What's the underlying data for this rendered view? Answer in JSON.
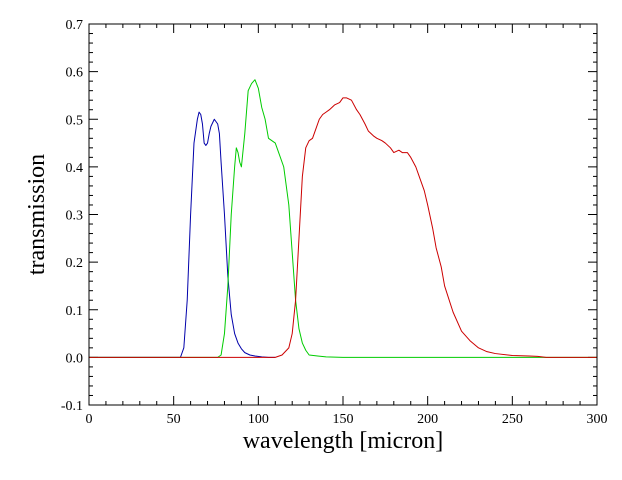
{
  "chart_data": {
    "type": "line",
    "title": "",
    "xlabel": "wavelength [micron]",
    "ylabel": "transmission",
    "xlim": [
      0,
      300
    ],
    "ylim": [
      -0.1,
      0.7
    ],
    "x_ticks": [
      0,
      50,
      100,
      150,
      200,
      250,
      300
    ],
    "x_tick_labels": [
      "0",
      "50",
      "100",
      "150",
      "200",
      "250",
      "300"
    ],
    "y_ticks": [
      -0.1,
      0.0,
      0.1,
      0.2,
      0.3,
      0.4,
      0.5,
      0.6,
      0.7
    ],
    "y_tick_labels": [
      "-0.1",
      "0.0",
      "0.1",
      "0.2",
      "0.3",
      "0.4",
      "0.5",
      "0.6",
      "0.7"
    ],
    "grid": false,
    "legend": "none",
    "series": [
      {
        "color": "#0000aa",
        "x": [
          0,
          54,
          56,
          58,
          60,
          62,
          64,
          65,
          66,
          67,
          68,
          69,
          70,
          71,
          72,
          74,
          76,
          77,
          78,
          80,
          82,
          84,
          86,
          88,
          90,
          92,
          95,
          98,
          102,
          106,
          110
        ],
        "y": [
          0,
          0,
          0.02,
          0.12,
          0.3,
          0.45,
          0.5,
          0.515,
          0.51,
          0.49,
          0.45,
          0.445,
          0.45,
          0.47,
          0.485,
          0.5,
          0.49,
          0.47,
          0.41,
          0.3,
          0.17,
          0.09,
          0.05,
          0.03,
          0.018,
          0.01,
          0.005,
          0.003,
          0.001,
          0,
          0
        ]
      },
      {
        "color": "#00cc00",
        "x": [
          0,
          76,
          78,
          80,
          82,
          84,
          86,
          87,
          88,
          89,
          90,
          92,
          94,
          96,
          98,
          100,
          102,
          104,
          106,
          108,
          110,
          112,
          115,
          118,
          120,
          122,
          124,
          126,
          128,
          130,
          135,
          140,
          150,
          300
        ],
        "y": [
          0,
          0,
          0.005,
          0.05,
          0.15,
          0.3,
          0.4,
          0.44,
          0.43,
          0.41,
          0.4,
          0.47,
          0.56,
          0.575,
          0.583,
          0.565,
          0.525,
          0.5,
          0.46,
          0.455,
          0.45,
          0.43,
          0.4,
          0.32,
          0.22,
          0.12,
          0.06,
          0.03,
          0.015,
          0.005,
          0.003,
          0.001,
          0,
          0
        ]
      },
      {
        "color": "#cc0000",
        "x": [
          0,
          110,
          114,
          118,
          120,
          122,
          124,
          126,
          128,
          130,
          132,
          134,
          136,
          138,
          140,
          142,
          145,
          148,
          150,
          152,
          155,
          158,
          160,
          163,
          165,
          168,
          170,
          173,
          175,
          178,
          180,
          183,
          185,
          188,
          190,
          193,
          195,
          198,
          200,
          203,
          205,
          208,
          210,
          215,
          220,
          225,
          230,
          235,
          240,
          250,
          260,
          265,
          270,
          300
        ],
        "y": [
          0,
          0,
          0.005,
          0.02,
          0.05,
          0.12,
          0.25,
          0.38,
          0.44,
          0.455,
          0.46,
          0.48,
          0.5,
          0.51,
          0.515,
          0.52,
          0.53,
          0.535,
          0.545,
          0.545,
          0.54,
          0.52,
          0.51,
          0.49,
          0.475,
          0.465,
          0.46,
          0.455,
          0.45,
          0.44,
          0.43,
          0.435,
          0.43,
          0.43,
          0.42,
          0.4,
          0.38,
          0.35,
          0.32,
          0.27,
          0.23,
          0.19,
          0.15,
          0.095,
          0.055,
          0.035,
          0.02,
          0.012,
          0.008,
          0.004,
          0.003,
          0.002,
          0,
          0
        ]
      }
    ]
  }
}
